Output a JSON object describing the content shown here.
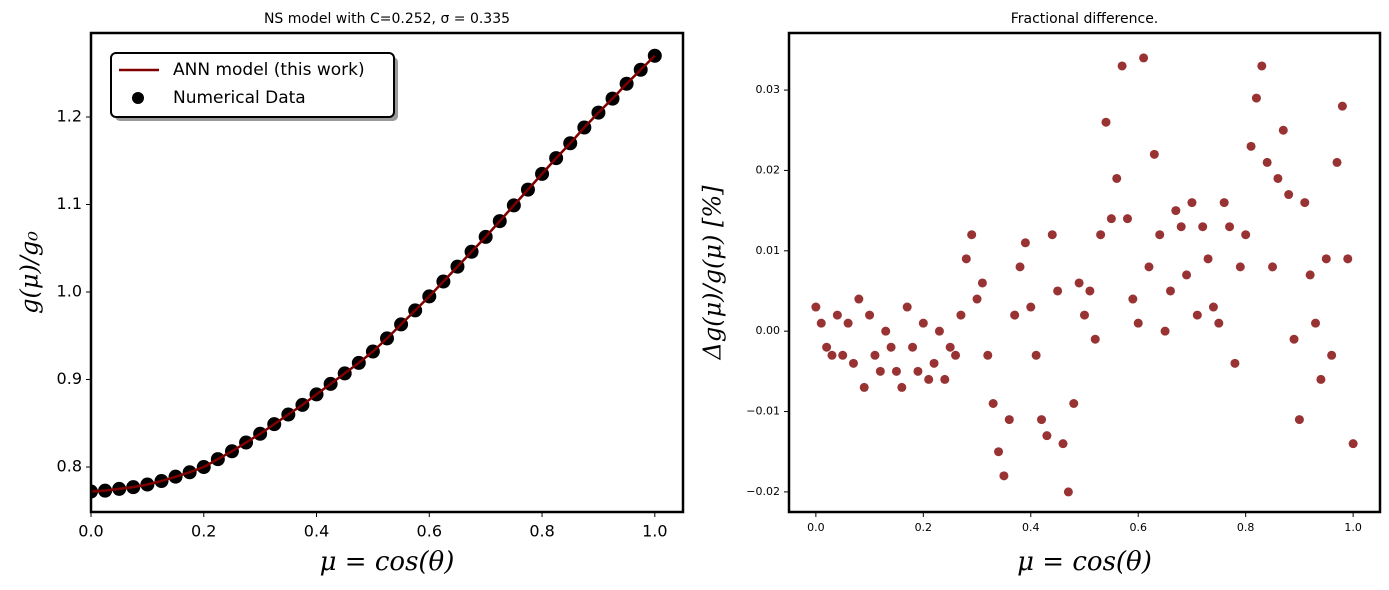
{
  "chart_data": [
    {
      "type": "line",
      "title": "NS model with C=0.252, σ = 0.335",
      "xlabel": "μ = cos(θ)",
      "ylabel": "g(μ)/g₀",
      "x": [
        0,
        0.025,
        0.05,
        0.075,
        0.1,
        0.125,
        0.15,
        0.175,
        0.2,
        0.225,
        0.25,
        0.275,
        0.3,
        0.325,
        0.35,
        0.375,
        0.4,
        0.425,
        0.45,
        0.475,
        0.5,
        0.525,
        0.55,
        0.575,
        0.6,
        0.625,
        0.65,
        0.675,
        0.7,
        0.725,
        0.75,
        0.775,
        0.8,
        0.825,
        0.85,
        0.875,
        0.9,
        0.925,
        0.95,
        0.975,
        1.0
      ],
      "series": [
        {
          "name": "ANN model (this work)",
          "color": "#800000",
          "type": "line",
          "values": [
            0.772,
            0.773,
            0.775,
            0.777,
            0.78,
            0.784,
            0.789,
            0.794,
            0.8,
            0.809,
            0.818,
            0.828,
            0.838,
            0.849,
            0.86,
            0.871,
            0.883,
            0.895,
            0.907,
            0.919,
            0.932,
            0.947,
            0.963,
            0.979,
            0.995,
            1.012,
            1.029,
            1.046,
            1.063,
            1.081,
            1.099,
            1.117,
            1.135,
            1.153,
            1.17,
            1.188,
            1.205,
            1.221,
            1.238,
            1.254,
            1.27
          ]
        },
        {
          "name": "Numerical Data",
          "color": "#000000",
          "type": "scatter",
          "values": [
            0.772,
            0.773,
            0.775,
            0.777,
            0.78,
            0.784,
            0.789,
            0.794,
            0.8,
            0.809,
            0.818,
            0.828,
            0.838,
            0.849,
            0.86,
            0.871,
            0.883,
            0.895,
            0.907,
            0.919,
            0.932,
            0.947,
            0.963,
            0.979,
            0.995,
            1.012,
            1.029,
            1.046,
            1.063,
            1.081,
            1.099,
            1.117,
            1.135,
            1.153,
            1.17,
            1.188,
            1.205,
            1.221,
            1.238,
            1.254,
            1.27
          ]
        }
      ],
      "xlim": [
        0,
        1.05
      ],
      "ylim": [
        0.7486,
        1.296
      ],
      "xticks": [
        {
          "value": 0,
          "label": "0.0"
        },
        0.2,
        0.4,
        0.6,
        0.8,
        {
          "value": 1,
          "label": "1.0"
        }
      ],
      "yticks": [
        0.8,
        0.9,
        {
          "value": 1,
          "label": "1.0"
        },
        1.1,
        1.2
      ],
      "legend": "upper left"
    },
    {
      "type": "scatter",
      "title": "Fractional difference.",
      "xlabel": "μ = cos(θ)",
      "ylabel": "Δg(μ)/g(μ)  [%]",
      "color": "#800000",
      "x": [
        0,
        0.01,
        0.02,
        0.03,
        0.04,
        0.05,
        0.06,
        0.07,
        0.08,
        0.09,
        0.1,
        0.11,
        0.12,
        0.13,
        0.14,
        0.15,
        0.16,
        0.17,
        0.18,
        0.19,
        0.2,
        0.21,
        0.22,
        0.23,
        0.24,
        0.25,
        0.26,
        0.27,
        0.28,
        0.29,
        0.3,
        0.31,
        0.32,
        0.33,
        0.34,
        0.35,
        0.36,
        0.37,
        0.38,
        0.39,
        0.4,
        0.41,
        0.42,
        0.43,
        0.44,
        0.45,
        0.46,
        0.47,
        0.48,
        0.49,
        0.5,
        0.51,
        0.52,
        0.53,
        0.54,
        0.55,
        0.56,
        0.57,
        0.58,
        0.59,
        0.6,
        0.61,
        0.62,
        0.63,
        0.64,
        0.65,
        0.66,
        0.67,
        0.68,
        0.69,
        0.7,
        0.71,
        0.72,
        0.73,
        0.74,
        0.75,
        0.76,
        0.77,
        0.78,
        0.79,
        0.8,
        0.81,
        0.82,
        0.83,
        0.84,
        0.85,
        0.86,
        0.87,
        0.88,
        0.89,
        0.9,
        0.91,
        0.92,
        0.93,
        0.94,
        0.95,
        0.96,
        0.97,
        0.98,
        0.99,
        1.0
      ],
      "values": [
        0.003,
        0.001,
        -0.002,
        -0.003,
        0.002,
        -0.003,
        0.001,
        -0.004,
        0.004,
        -0.007,
        0.002,
        -0.003,
        -0.005,
        0,
        -0.002,
        -0.005,
        -0.007,
        0.003,
        -0.002,
        -0.005,
        0.001,
        -0.006,
        -0.004,
        0,
        -0.006,
        -0.002,
        -0.003,
        0.002,
        0.009,
        0.012,
        0.004,
        0.006,
        -0.003,
        -0.009,
        -0.015,
        -0.018,
        -0.011,
        0.002,
        0.008,
        0.011,
        0.003,
        -0.003,
        -0.011,
        -0.013,
        0.012,
        0.005,
        -0.014,
        -0.02,
        -0.009,
        0.006,
        0.002,
        0.005,
        -0.001,
        0.012,
        0.026,
        0.014,
        0.019,
        0.033,
        0.014,
        0.004,
        0.001,
        0.034,
        0.008,
        0.022,
        0.012,
        0,
        0.005,
        0.015,
        0.013,
        0.007,
        0.016,
        0.002,
        0.013,
        0.009,
        0.003,
        0.001,
        0.016,
        0.013,
        -0.004,
        0.008,
        0.012,
        0.023,
        0.029,
        0.033,
        0.021,
        0.008,
        0.019,
        0.025,
        0.017,
        -0.001,
        -0.011,
        0.016,
        0.007,
        0.001,
        -0.006,
        0.009,
        -0.003,
        0.021,
        0.028,
        0.009,
        -0.014
      ],
      "xlim": [
        -0.05,
        1.05
      ],
      "ylim": [
        -0.0225,
        0.0371
      ],
      "xticks": [
        {
          "value": 0,
          "label": "0.0"
        },
        0.2,
        0.4,
        0.6,
        0.8,
        {
          "value": 1,
          "label": "1.0"
        }
      ],
      "yticks": [
        {
          "value": -0.02,
          "label": "−0.02"
        },
        {
          "value": -0.01,
          "label": "−0.01"
        },
        {
          "value": 0,
          "label": "0.00"
        },
        0.01,
        0.02,
        0.03
      ]
    }
  ]
}
